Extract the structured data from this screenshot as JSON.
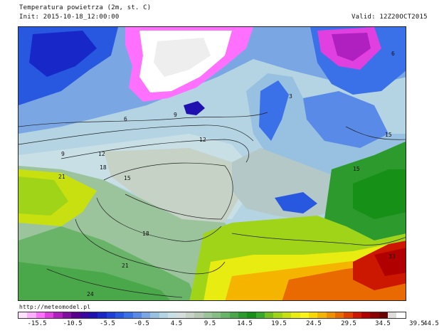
{
  "title": "Temperatura powietrza (2m, st. C)",
  "init": "Init: 2015-10-18_12:00:00",
  "valid": "Valid: 12Z20OCT2015",
  "footer_url": "http://meteomodel.pl",
  "legend": {
    "colors": [
      "#ffe0ff",
      "#ffb0ff",
      "#ff70ff",
      "#e040e0",
      "#b020c0",
      "#8010a0",
      "#5a0090",
      "#3a08a0",
      "#2010b0",
      "#1828c8",
      "#1e40d8",
      "#2858e0",
      "#3a70e8",
      "#5a8ae8",
      "#7aa6e4",
      "#98c0e0",
      "#b4d4e4",
      "#c8dfe6",
      "#d4dcdc",
      "#c6d2c6",
      "#b4c8b4",
      "#9cc49c",
      "#86bf86",
      "#6ab46a",
      "#4aa84a",
      "#2c9a2c",
      "#169016",
      "#38a828",
      "#70c020",
      "#a0d418",
      "#c8e010",
      "#e8ec10",
      "#f8f418",
      "#f8d800",
      "#f4b400",
      "#ee9000",
      "#e86a00",
      "#e04000",
      "#cc1800",
      "#b00000",
      "#8c0000",
      "#6a0000",
      "#dddddd",
      "#ffffff"
    ],
    "tick_labels": [
      "-15.5",
      "-10.5",
      "-5.5",
      "-0.5",
      "4.5",
      "9.5",
      "14.5",
      "19.5",
      "24.5",
      "29.5",
      "34.5",
      "39.5",
      "44.5"
    ]
  },
  "contour_labels": [
    {
      "text": "6"
    },
    {
      "text": "9"
    },
    {
      "text": "9"
    },
    {
      "text": "12"
    },
    {
      "text": "12"
    },
    {
      "text": "15"
    },
    {
      "text": "18"
    },
    {
      "text": "18"
    },
    {
      "text": "21"
    },
    {
      "text": "21"
    },
    {
      "text": "24"
    },
    {
      "text": "15"
    },
    {
      "text": "15"
    },
    {
      "text": "33"
    },
    {
      "text": "6"
    },
    {
      "text": "3"
    }
  ]
}
